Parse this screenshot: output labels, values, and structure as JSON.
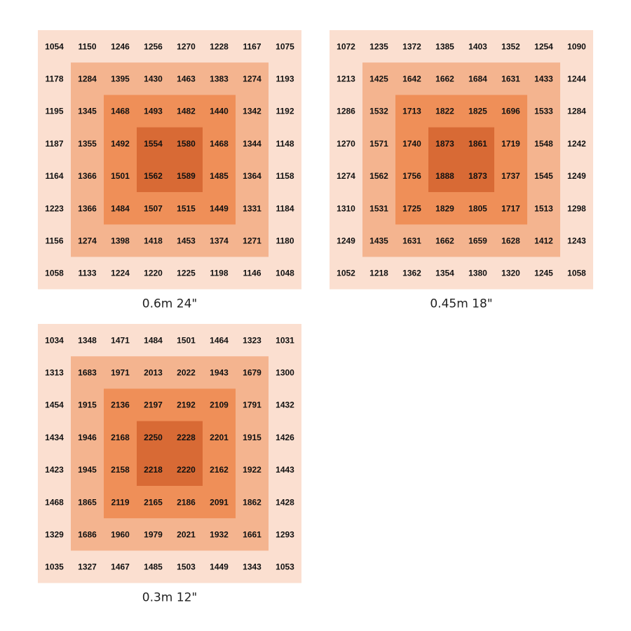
{
  "panels": [
    {
      "caption": "0.6m 24\"",
      "rows": [
        [
          1054,
          1150,
          1246,
          1256,
          1270,
          1228,
          1167,
          1075
        ],
        [
          1178,
          1284,
          1395,
          1430,
          1463,
          1383,
          1274,
          1193
        ],
        [
          1195,
          1345,
          1468,
          1493,
          1482,
          1440,
          1342,
          1192
        ],
        [
          1187,
          1355,
          1492,
          1554,
          1580,
          1468,
          1344,
          1148
        ],
        [
          1164,
          1366,
          1501,
          1562,
          1589,
          1485,
          1364,
          1158
        ],
        [
          1223,
          1366,
          1484,
          1507,
          1515,
          1449,
          1331,
          1184
        ],
        [
          1156,
          1274,
          1398,
          1418,
          1453,
          1374,
          1271,
          1180
        ],
        [
          1058,
          1133,
          1224,
          1220,
          1225,
          1198,
          1146,
          1048
        ]
      ]
    },
    {
      "caption": "0.45m 18\"",
      "rows": [
        [
          1072,
          1235,
          1372,
          1385,
          1403,
          1352,
          1254,
          1090
        ],
        [
          1213,
          1425,
          1642,
          1662,
          1684,
          1631,
          1433,
          1244
        ],
        [
          1286,
          1532,
          1713,
          1822,
          1825,
          1696,
          1533,
          1284
        ],
        [
          1270,
          1571,
          1740,
          1873,
          1861,
          1719,
          1548,
          1242
        ],
        [
          1274,
          1562,
          1756,
          1888,
          1873,
          1737,
          1545,
          1249
        ],
        [
          1310,
          1531,
          1725,
          1829,
          1805,
          1717,
          1513,
          1298
        ],
        [
          1249,
          1435,
          1631,
          1662,
          1659,
          1628,
          1412,
          1243
        ],
        [
          1052,
          1218,
          1362,
          1354,
          1380,
          1320,
          1245,
          1058
        ]
      ]
    },
    {
      "caption": "0.3m 12\"",
      "rows": [
        [
          1034,
          1348,
          1471,
          1484,
          1501,
          1464,
          1323,
          1031
        ],
        [
          1313,
          1683,
          1971,
          2013,
          2022,
          1943,
          1679,
          1300
        ],
        [
          1454,
          1915,
          2136,
          2197,
          2192,
          2109,
          1791,
          1432
        ],
        [
          1434,
          1946,
          2168,
          2250,
          2228,
          2201,
          1915,
          1426
        ],
        [
          1423,
          1945,
          2158,
          2218,
          2220,
          2162,
          1922,
          1443
        ],
        [
          1468,
          1865,
          2119,
          2165,
          2186,
          2091,
          1862,
          1428
        ],
        [
          1329,
          1686,
          1960,
          1979,
          2021,
          1932,
          1661,
          1293
        ],
        [
          1035,
          1327,
          1467,
          1485,
          1503,
          1449,
          1343,
          1053
        ]
      ]
    }
  ]
}
